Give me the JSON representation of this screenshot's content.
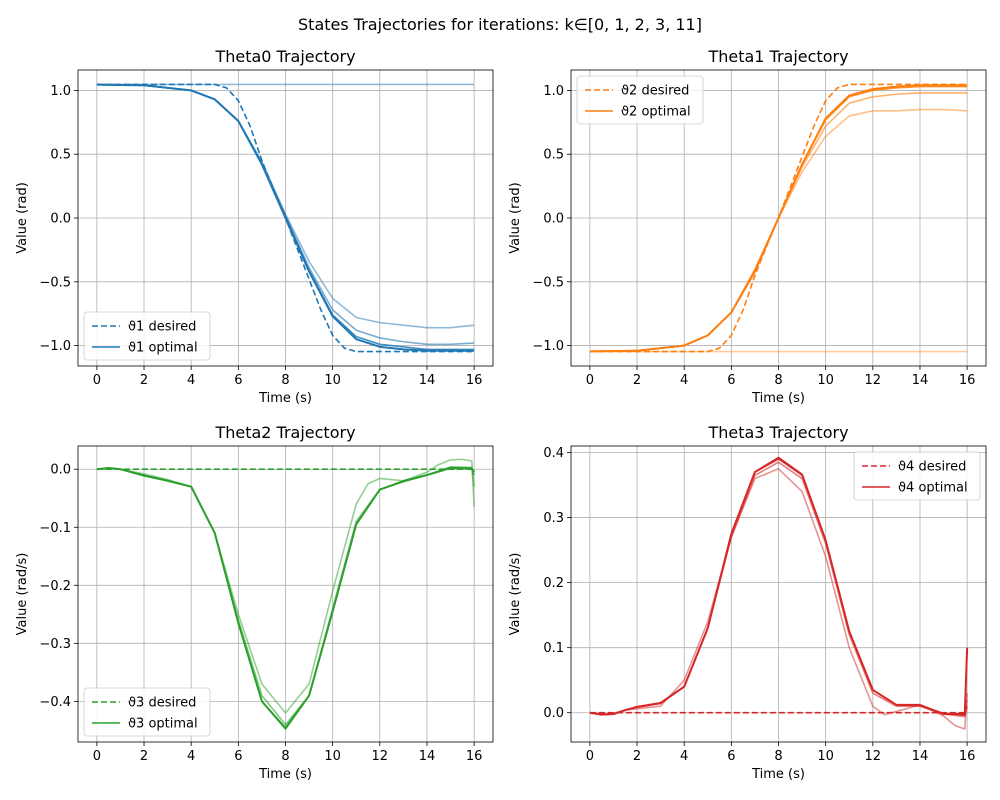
{
  "figure": {
    "suptitle": "States Trajectories for iterations: k∈[0, 1, 2, 3, 11]"
  },
  "chart_data": [
    {
      "type": "line",
      "title": "Theta0 Trajectory",
      "xlabel": "Time (s)",
      "ylabel": "Value (rad)",
      "xlim": [
        -0.8,
        16.8
      ],
      "ylim": [
        -1.16,
        1.16
      ],
      "xticks": [
        0,
        2,
        4,
        6,
        8,
        10,
        12,
        14,
        16
      ],
      "yticks": [
        -1.0,
        -0.5,
        0.0,
        0.5,
        1.0
      ],
      "grid": true,
      "legend_position": "lower-left",
      "color": "#1f77b4",
      "legend": [
        "ϑ1 desired",
        "ϑ1 optimal"
      ],
      "desired": {
        "x": [
          0,
          1,
          2,
          3,
          4,
          5,
          5.5,
          6,
          6.5,
          7,
          7.5,
          8,
          8.5,
          9,
          9.5,
          10,
          10.5,
          11,
          12,
          13,
          14,
          15,
          16
        ],
        "y": [
          1.047,
          1.047,
          1.047,
          1.047,
          1.047,
          1.047,
          1.02,
          0.92,
          0.72,
          0.45,
          0.22,
          0.0,
          -0.24,
          -0.48,
          -0.72,
          -0.92,
          -1.02,
          -1.047,
          -1.047,
          -1.047,
          -1.047,
          -1.047,
          -1.047
        ]
      },
      "iterations": [
        {
          "alpha": 0.5,
          "x": [
            0,
            16
          ],
          "y": [
            1.047,
            1.047
          ]
        },
        {
          "alpha": 0.5,
          "x": [
            0,
            2,
            4,
            5,
            6,
            7,
            8,
            9,
            10,
            11,
            12,
            13,
            14,
            15,
            16
          ],
          "y": [
            1.045,
            1.04,
            1.0,
            0.93,
            0.76,
            0.44,
            0.03,
            -0.34,
            -0.63,
            -0.78,
            -0.82,
            -0.84,
            -0.86,
            -0.86,
            -0.84
          ]
        },
        {
          "alpha": 0.6,
          "x": [
            0,
            2,
            4,
            5,
            6,
            7,
            8,
            9,
            10,
            11,
            12,
            13,
            14,
            15,
            16
          ],
          "y": [
            1.045,
            1.04,
            1.0,
            0.93,
            0.76,
            0.43,
            0.02,
            -0.39,
            -0.72,
            -0.88,
            -0.94,
            -0.97,
            -0.99,
            -0.99,
            -0.98
          ]
        },
        {
          "alpha": 0.85,
          "x": [
            0,
            2,
            4,
            5,
            6,
            7,
            8,
            9,
            10,
            11,
            12,
            13,
            14,
            15,
            16
          ],
          "y": [
            1.045,
            1.04,
            1.0,
            0.93,
            0.76,
            0.42,
            0.01,
            -0.41,
            -0.76,
            -0.93,
            -0.99,
            -1.01,
            -1.03,
            -1.03,
            -1.03
          ]
        },
        {
          "alpha": 1.0,
          "x": [
            0,
            2,
            4,
            5,
            6,
            7,
            8,
            9,
            10,
            11,
            12,
            13,
            14,
            15,
            16
          ],
          "y": [
            1.045,
            1.04,
            1.0,
            0.93,
            0.76,
            0.42,
            0.0,
            -0.42,
            -0.77,
            -0.95,
            -1.01,
            -1.03,
            -1.04,
            -1.04,
            -1.04
          ]
        }
      ]
    },
    {
      "type": "line",
      "title": "Theta1 Trajectory",
      "xlabel": "Time (s)",
      "ylabel": "Value (rad)",
      "xlim": [
        -0.8,
        16.8
      ],
      "ylim": [
        -1.16,
        1.16
      ],
      "xticks": [
        0,
        2,
        4,
        6,
        8,
        10,
        12,
        14,
        16
      ],
      "yticks": [
        -1.0,
        -0.5,
        0.0,
        0.5,
        1.0
      ],
      "grid": true,
      "legend_position": "upper-left",
      "color": "#ff7f0e",
      "legend": [
        "ϑ2 desired",
        "ϑ2 optimal"
      ],
      "desired": {
        "x": [
          0,
          1,
          2,
          3,
          4,
          5,
          5.5,
          6,
          6.5,
          7,
          7.5,
          8,
          8.5,
          9,
          9.5,
          10,
          10.5,
          11,
          12,
          13,
          14,
          15,
          16
        ],
        "y": [
          -1.047,
          -1.047,
          -1.047,
          -1.047,
          -1.047,
          -1.047,
          -1.02,
          -0.92,
          -0.72,
          -0.45,
          -0.22,
          0.0,
          0.24,
          0.48,
          0.72,
          0.92,
          1.02,
          1.047,
          1.047,
          1.047,
          1.047,
          1.047,
          1.047
        ]
      },
      "iterations": [
        {
          "alpha": 0.4,
          "x": [
            0,
            16
          ],
          "y": [
            -1.047,
            -1.047
          ]
        },
        {
          "alpha": 0.5,
          "x": [
            0,
            2,
            4,
            5,
            6,
            7,
            8,
            9,
            10,
            11,
            12,
            13,
            14,
            15,
            16
          ],
          "y": [
            -1.045,
            -1.04,
            -1.0,
            -0.92,
            -0.74,
            -0.4,
            0.0,
            0.36,
            0.64,
            0.8,
            0.84,
            0.84,
            0.85,
            0.85,
            0.84
          ]
        },
        {
          "alpha": 0.6,
          "x": [
            0,
            2,
            4,
            5,
            6,
            7,
            8,
            9,
            10,
            11,
            12,
            13,
            14,
            15,
            16
          ],
          "y": [
            -1.045,
            -1.04,
            -1.0,
            -0.92,
            -0.74,
            -0.41,
            0.0,
            0.4,
            0.72,
            0.9,
            0.95,
            0.97,
            0.98,
            0.98,
            0.98
          ]
        },
        {
          "alpha": 0.85,
          "x": [
            0,
            2,
            4,
            5,
            6,
            7,
            8,
            9,
            10,
            11,
            12,
            13,
            14,
            15,
            16
          ],
          "y": [
            -1.045,
            -1.04,
            -1.0,
            -0.92,
            -0.74,
            -0.41,
            0.0,
            0.42,
            0.77,
            0.95,
            1.0,
            1.02,
            1.03,
            1.03,
            1.03
          ]
        },
        {
          "alpha": 1.0,
          "x": [
            0,
            2,
            4,
            5,
            6,
            7,
            8,
            9,
            10,
            11,
            12,
            13,
            14,
            15,
            16
          ],
          "y": [
            -1.045,
            -1.04,
            -1.0,
            -0.92,
            -0.74,
            -0.42,
            0.0,
            0.42,
            0.78,
            0.96,
            1.01,
            1.03,
            1.04,
            1.04,
            1.04
          ]
        }
      ]
    },
    {
      "type": "line",
      "title": "Theta2 Trajectory",
      "xlabel": "Time (s)",
      "ylabel": "Value (rad/s)",
      "xlim": [
        -0.8,
        16.8
      ],
      "ylim": [
        -0.47,
        0.04
      ],
      "xticks": [
        0,
        2,
        4,
        6,
        8,
        10,
        12,
        14,
        16
      ],
      "yticks": [
        -0.4,
        -0.3,
        -0.2,
        -0.1,
        0.0
      ],
      "grid": true,
      "legend_position": "lower-left",
      "color": "#2ca02c",
      "legend": [
        "ϑ3 desired",
        "ϑ3 optimal"
      ],
      "desired": {
        "x": [
          0,
          16
        ],
        "y": [
          0.0,
          0.0
        ]
      },
      "iterations": [
        {
          "alpha": 0.5,
          "x": [
            0,
            0.5,
            1,
            2,
            3,
            4,
            5,
            6,
            7,
            8,
            9,
            10,
            11,
            11.5,
            12,
            13,
            14,
            14.5,
            15,
            15.5,
            15.9,
            16
          ],
          "y": [
            0.0,
            0.001,
            0.0,
            -0.008,
            -0.018,
            -0.03,
            -0.11,
            -0.25,
            -0.37,
            -0.42,
            -0.37,
            -0.21,
            -0.06,
            -0.025,
            -0.016,
            -0.02,
            -0.005,
            0.008,
            0.016,
            0.017,
            0.014,
            -0.065
          ]
        },
        {
          "alpha": 0.6,
          "x": [
            0,
            0.5,
            1,
            2,
            3,
            4,
            5,
            6,
            7,
            8,
            9,
            10,
            11,
            12,
            13,
            14,
            15,
            15.9,
            16
          ],
          "y": [
            0.0,
            0.002,
            0.0,
            -0.01,
            -0.019,
            -0.03,
            -0.11,
            -0.26,
            -0.39,
            -0.44,
            -0.39,
            -0.24,
            -0.09,
            -0.035,
            -0.02,
            -0.01,
            0.004,
            0.003,
            -0.03
          ]
        },
        {
          "alpha": 0.85,
          "x": [
            0,
            0.5,
            1,
            2,
            3,
            4,
            5,
            6,
            7,
            8,
            9,
            10,
            11,
            12,
            13,
            14,
            15,
            15.9,
            16
          ],
          "y": [
            0.0,
            0.002,
            0.0,
            -0.011,
            -0.02,
            -0.03,
            -0.11,
            -0.265,
            -0.4,
            -0.445,
            -0.39,
            -0.245,
            -0.095,
            -0.035,
            -0.02,
            -0.01,
            0.003,
            0.002,
            -0.01
          ]
        },
        {
          "alpha": 1.0,
          "x": [
            0,
            0.5,
            1,
            2,
            3,
            4,
            5,
            6,
            7,
            8,
            9,
            10,
            11,
            12,
            13,
            14,
            15,
            15.9,
            16
          ],
          "y": [
            0.0,
            0.002,
            0.0,
            -0.011,
            -0.02,
            -0.03,
            -0.11,
            -0.265,
            -0.4,
            -0.447,
            -0.39,
            -0.245,
            -0.095,
            -0.035,
            -0.021,
            -0.01,
            0.002,
            0.001,
            -0.005
          ]
        }
      ]
    },
    {
      "type": "line",
      "title": "Theta3 Trajectory",
      "xlabel": "Time (s)",
      "ylabel": "Value (rad/s)",
      "xlim": [
        -0.8,
        16.8
      ],
      "ylim": [
        -0.045,
        0.41
      ],
      "xticks": [
        0,
        2,
        4,
        6,
        8,
        10,
        12,
        14,
        16
      ],
      "yticks": [
        0.0,
        0.1,
        0.2,
        0.3,
        0.4
      ],
      "grid": true,
      "legend_position": "upper-right",
      "color": "#d62728",
      "legend": [
        "ϑ4 desired",
        "ϑ4 optimal"
      ],
      "desired": {
        "x": [
          0,
          16
        ],
        "y": [
          0.0,
          0.0
        ]
      },
      "iterations": [
        {
          "alpha": 0.5,
          "x": [
            0,
            0.5,
            1,
            1.5,
            2,
            3,
            4,
            5,
            6,
            7,
            8,
            9,
            10,
            11,
            12,
            12.5,
            13,
            14,
            15,
            15.5,
            15.9,
            16
          ],
          "y": [
            0.0,
            -0.002,
            -0.001,
            0.004,
            0.006,
            0.01,
            0.05,
            0.14,
            0.27,
            0.36,
            0.375,
            0.34,
            0.24,
            0.1,
            0.01,
            -0.003,
            0.002,
            0.012,
            -0.005,
            -0.02,
            -0.025,
            0.03
          ]
        },
        {
          "alpha": 0.6,
          "x": [
            0,
            0.5,
            1,
            1.5,
            2,
            3,
            4,
            5,
            6,
            7,
            8,
            9,
            10,
            11,
            12,
            13,
            14,
            15,
            15.9,
            16
          ],
          "y": [
            0.0,
            -0.003,
            -0.002,
            0.004,
            0.008,
            0.014,
            0.04,
            0.13,
            0.27,
            0.365,
            0.385,
            0.36,
            0.26,
            0.12,
            0.03,
            0.01,
            0.01,
            -0.002,
            -0.006,
            0.02
          ]
        },
        {
          "alpha": 0.85,
          "x": [
            0,
            0.5,
            1,
            1.5,
            2,
            3,
            4,
            5,
            6,
            7,
            8,
            9,
            10,
            11,
            12,
            13,
            14,
            15,
            15.9,
            16
          ],
          "y": [
            0.0,
            -0.003,
            -0.002,
            0.004,
            0.009,
            0.015,
            0.04,
            0.13,
            0.275,
            0.37,
            0.39,
            0.365,
            0.265,
            0.125,
            0.035,
            0.012,
            0.011,
            -0.001,
            -0.004,
            0.01
          ]
        },
        {
          "alpha": 1.0,
          "x": [
            0,
            0.5,
            1,
            1.5,
            2,
            3,
            4,
            5,
            6,
            7,
            8,
            9,
            10,
            11,
            12,
            13,
            14,
            15,
            15.9,
            16
          ],
          "y": [
            0.0,
            -0.003,
            -0.002,
            0.004,
            0.009,
            0.015,
            0.04,
            0.13,
            0.275,
            0.37,
            0.392,
            0.366,
            0.265,
            0.125,
            0.035,
            0.012,
            0.012,
            -0.002,
            -0.002,
            0.1
          ]
        }
      ]
    }
  ]
}
